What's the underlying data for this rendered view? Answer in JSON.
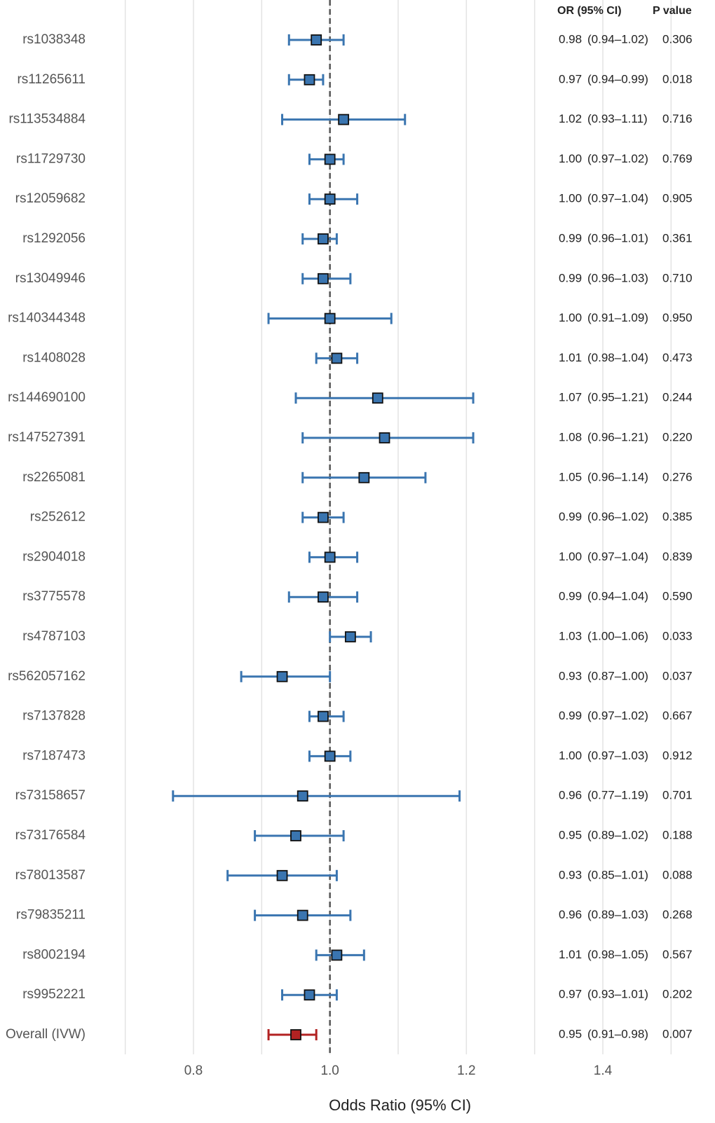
{
  "chart_data": {
    "type": "forest",
    "xlabel": "Odds Ratio (95% CI)",
    "xlim": [
      0.7,
      1.5
    ],
    "xticks": [
      0.8,
      1.0,
      1.2,
      1.4
    ],
    "tick_labels": [
      "0.8",
      "1.0",
      "1.2",
      "1.4"
    ],
    "reference_line": 1.0,
    "column_headers": {
      "or_ci": "OR (95% CI)",
      "p": "P value"
    },
    "colors": {
      "snp": "#3a75b0",
      "overall": "#b22222",
      "reference": "#555555",
      "grid": "#e3e3e3"
    },
    "rows": [
      {
        "label": "rs1038348",
        "or": 0.98,
        "lo": 0.94,
        "hi": 1.02,
        "or_text": "0.98",
        "ci_text": "(0.94–1.02)",
        "p_text": "0.306"
      },
      {
        "label": "rs11265611",
        "or": 0.97,
        "lo": 0.94,
        "hi": 0.99,
        "or_text": "0.97",
        "ci_text": "(0.94–0.99)",
        "p_text": "0.018"
      },
      {
        "label": "rs113534884",
        "or": 1.02,
        "lo": 0.93,
        "hi": 1.11,
        "or_text": "1.02",
        "ci_text": "(0.93–1.11)",
        "p_text": "0.716"
      },
      {
        "label": "rs11729730",
        "or": 1.0,
        "lo": 0.97,
        "hi": 1.02,
        "or_text": "1.00",
        "ci_text": "(0.97–1.02)",
        "p_text": "0.769"
      },
      {
        "label": "rs12059682",
        "or": 1.0,
        "lo": 0.97,
        "hi": 1.04,
        "or_text": "1.00",
        "ci_text": "(0.97–1.04)",
        "p_text": "0.905"
      },
      {
        "label": "rs1292056",
        "or": 0.99,
        "lo": 0.96,
        "hi": 1.01,
        "or_text": "0.99",
        "ci_text": "(0.96–1.01)",
        "p_text": "0.361"
      },
      {
        "label": "rs13049946",
        "or": 0.99,
        "lo": 0.96,
        "hi": 1.03,
        "or_text": "0.99",
        "ci_text": "(0.96–1.03)",
        "p_text": "0.710"
      },
      {
        "label": "rs140344348",
        "or": 1.0,
        "lo": 0.91,
        "hi": 1.09,
        "or_text": "1.00",
        "ci_text": "(0.91–1.09)",
        "p_text": "0.950"
      },
      {
        "label": "rs1408028",
        "or": 1.01,
        "lo": 0.98,
        "hi": 1.04,
        "or_text": "1.01",
        "ci_text": "(0.98–1.04)",
        "p_text": "0.473"
      },
      {
        "label": "rs144690100",
        "or": 1.07,
        "lo": 0.95,
        "hi": 1.21,
        "or_text": "1.07",
        "ci_text": "(0.95–1.21)",
        "p_text": "0.244"
      },
      {
        "label": "rs147527391",
        "or": 1.08,
        "lo": 0.96,
        "hi": 1.21,
        "or_text": "1.08",
        "ci_text": "(0.96–1.21)",
        "p_text": "0.220"
      },
      {
        "label": "rs2265081",
        "or": 1.05,
        "lo": 0.96,
        "hi": 1.14,
        "or_text": "1.05",
        "ci_text": "(0.96–1.14)",
        "p_text": "0.276"
      },
      {
        "label": "rs252612",
        "or": 0.99,
        "lo": 0.96,
        "hi": 1.02,
        "or_text": "0.99",
        "ci_text": "(0.96–1.02)",
        "p_text": "0.385"
      },
      {
        "label": "rs2904018",
        "or": 1.0,
        "lo": 0.97,
        "hi": 1.04,
        "or_text": "1.00",
        "ci_text": "(0.97–1.04)",
        "p_text": "0.839"
      },
      {
        "label": "rs3775578",
        "or": 0.99,
        "lo": 0.94,
        "hi": 1.04,
        "or_text": "0.99",
        "ci_text": "(0.94–1.04)",
        "p_text": "0.590"
      },
      {
        "label": "rs4787103",
        "or": 1.03,
        "lo": 1.0,
        "hi": 1.06,
        "or_text": "1.03",
        "ci_text": "(1.00–1.06)",
        "p_text": "0.033"
      },
      {
        "label": "rs562057162",
        "or": 0.93,
        "lo": 0.87,
        "hi": 1.0,
        "or_text": "0.93",
        "ci_text": "(0.87–1.00)",
        "p_text": "0.037"
      },
      {
        "label": "rs7137828",
        "or": 0.99,
        "lo": 0.97,
        "hi": 1.02,
        "or_text": "0.99",
        "ci_text": "(0.97–1.02)",
        "p_text": "0.667"
      },
      {
        "label": "rs7187473",
        "or": 1.0,
        "lo": 0.97,
        "hi": 1.03,
        "or_text": "1.00",
        "ci_text": "(0.97–1.03)",
        "p_text": "0.912"
      },
      {
        "label": "rs73158657",
        "or": 0.96,
        "lo": 0.77,
        "hi": 1.19,
        "or_text": "0.96",
        "ci_text": "(0.77–1.19)",
        "p_text": "0.701"
      },
      {
        "label": "rs73176584",
        "or": 0.95,
        "lo": 0.89,
        "hi": 1.02,
        "or_text": "0.95",
        "ci_text": "(0.89–1.02)",
        "p_text": "0.188"
      },
      {
        "label": "rs78013587",
        "or": 0.93,
        "lo": 0.85,
        "hi": 1.01,
        "or_text": "0.93",
        "ci_text": "(0.85–1.01)",
        "p_text": "0.088"
      },
      {
        "label": "rs79835211",
        "or": 0.96,
        "lo": 0.89,
        "hi": 1.03,
        "or_text": "0.96",
        "ci_text": "(0.89–1.03)",
        "p_text": "0.268"
      },
      {
        "label": "rs8002194",
        "or": 1.01,
        "lo": 0.98,
        "hi": 1.05,
        "or_text": "1.01",
        "ci_text": "(0.98–1.05)",
        "p_text": "0.567"
      },
      {
        "label": "rs9952221",
        "or": 0.97,
        "lo": 0.93,
        "hi": 1.01,
        "or_text": "0.97",
        "ci_text": "(0.93–1.01)",
        "p_text": "0.202"
      },
      {
        "label": "Overall (IVW)",
        "or": 0.95,
        "lo": 0.91,
        "hi": 0.98,
        "or_text": "0.95",
        "ci_text": "(0.91–0.98)",
        "p_text": "0.007",
        "overall": true
      }
    ]
  }
}
